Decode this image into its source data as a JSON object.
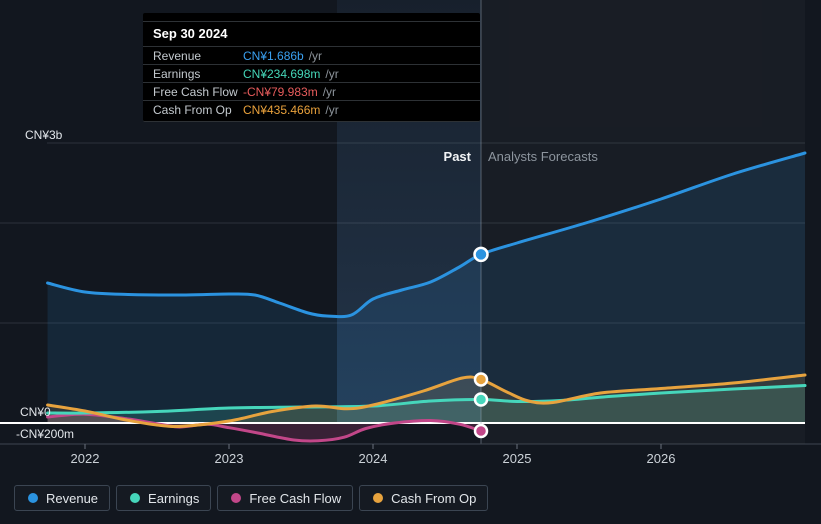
{
  "tooltip": {
    "title": "Sep 30 2024",
    "rows": [
      {
        "label": "Revenue",
        "value": "CN¥1.686b",
        "suffix": "/yr",
        "color": "#3aa0f0"
      },
      {
        "label": "Earnings",
        "value": "CN¥234.698m",
        "suffix": "/yr",
        "color": "#45d6b8"
      },
      {
        "label": "Free Cash Flow",
        "value": "-CN¥79.983m",
        "suffix": "/yr",
        "color": "#e85c5c"
      },
      {
        "label": "Cash From Op",
        "value": "CN¥435.466m",
        "suffix": "/yr",
        "color": "#e9a13b"
      }
    ]
  },
  "annotations": {
    "past_label": "Past",
    "forecast_label": "Analysts Forecasts"
  },
  "y_axis": {
    "top_label": "CN¥3b",
    "zero_label": "CN¥0",
    "neg_label": "-CN¥200m"
  },
  "x_axis": {
    "years": [
      "2022",
      "2023",
      "2024",
      "2025",
      "2026"
    ]
  },
  "legend": [
    {
      "label": "Revenue",
      "color": "#2b93e0"
    },
    {
      "label": "Earnings",
      "color": "#46d6bb"
    },
    {
      "label": "Free Cash Flow",
      "color": "#c24789"
    },
    {
      "label": "Cash From Op",
      "color": "#e7a33e"
    }
  ],
  "chart_data": {
    "type": "line",
    "unit": "CN¥ billions",
    "x_unit": "calendar year (fractional)",
    "x_range": [
      2021.74,
      2027.0
    ],
    "ylim": [
      -0.2,
      3.0
    ],
    "gridlines_billions": [
      3,
      2,
      1,
      0,
      -0.2
    ],
    "divider_date": "Sep 30 2024",
    "divider_x": 2024.75,
    "legend_position": "bottom",
    "series": [
      {
        "name": "Revenue",
        "color": "#2b93e0",
        "fill": "rgba(43,147,224,0.13)",
        "marker_value": 1.686,
        "past": [
          [
            2021.74,
            1.4
          ],
          [
            2022.0,
            1.31
          ],
          [
            2022.3,
            1.285
          ],
          [
            2022.7,
            1.28
          ],
          [
            2023.0,
            1.29
          ],
          [
            2023.18,
            1.28
          ],
          [
            2023.35,
            1.2
          ],
          [
            2023.55,
            1.1
          ],
          [
            2023.68,
            1.07
          ],
          [
            2023.85,
            1.08
          ],
          [
            2024.0,
            1.24
          ],
          [
            2024.2,
            1.33
          ],
          [
            2024.4,
            1.41
          ],
          [
            2024.6,
            1.56
          ],
          [
            2024.75,
            1.686
          ]
        ],
        "forecast": [
          [
            2024.75,
            1.686
          ],
          [
            2025.0,
            1.8
          ],
          [
            2025.5,
            2.01
          ],
          [
            2026.0,
            2.24
          ],
          [
            2026.5,
            2.49
          ],
          [
            2027.0,
            2.7
          ]
        ]
      },
      {
        "name": "Earnings",
        "color": "#46d6bb",
        "fill": "rgba(70,214,187,0.17)",
        "marker_value": 0.2347,
        "past": [
          [
            2021.74,
            0.1
          ],
          [
            2022.0,
            0.1
          ],
          [
            2022.5,
            0.115
          ],
          [
            2023.0,
            0.15
          ],
          [
            2023.5,
            0.16
          ],
          [
            2024.0,
            0.17
          ],
          [
            2024.4,
            0.22
          ],
          [
            2024.75,
            0.2347
          ]
        ],
        "forecast": [
          [
            2024.75,
            0.2347
          ],
          [
            2025.0,
            0.215
          ],
          [
            2025.3,
            0.225
          ],
          [
            2025.6,
            0.26
          ],
          [
            2026.0,
            0.3
          ],
          [
            2026.5,
            0.34
          ],
          [
            2027.0,
            0.375
          ]
        ]
      },
      {
        "name": "Free Cash Flow",
        "color": "#c24789",
        "fill": "rgba(194,71,137,0.22)",
        "marker_value": -0.08,
        "past": [
          [
            2021.74,
            0.06
          ],
          [
            2022.0,
            0.088
          ],
          [
            2022.3,
            0.04
          ],
          [
            2022.55,
            -0.02
          ],
          [
            2022.66,
            -0.04
          ],
          [
            2022.85,
            -0.013
          ],
          [
            2023.0,
            -0.047
          ],
          [
            2023.2,
            -0.1
          ],
          [
            2023.45,
            -0.17
          ],
          [
            2023.62,
            -0.178
          ],
          [
            2023.8,
            -0.142
          ],
          [
            2023.95,
            -0.055
          ],
          [
            2024.15,
            0.0
          ],
          [
            2024.4,
            0.025
          ],
          [
            2024.6,
            -0.012
          ],
          [
            2024.75,
            -0.08
          ]
        ],
        "forecast": []
      },
      {
        "name": "Cash From Op",
        "color": "#e7a33e",
        "fill": "rgba(231,163,62,0.13)",
        "marker_value": 0.4355,
        "past": [
          [
            2021.74,
            0.18
          ],
          [
            2022.0,
            0.12
          ],
          [
            2022.25,
            0.04
          ],
          [
            2022.5,
            -0.02
          ],
          [
            2022.68,
            -0.032
          ],
          [
            2023.0,
            0.02
          ],
          [
            2023.3,
            0.115
          ],
          [
            2023.6,
            0.17
          ],
          [
            2023.82,
            0.142
          ],
          [
            2024.0,
            0.18
          ],
          [
            2024.35,
            0.32
          ],
          [
            2024.62,
            0.45
          ],
          [
            2024.75,
            0.4355
          ]
        ],
        "forecast": [
          [
            2024.75,
            0.4355
          ],
          [
            2024.93,
            0.31
          ],
          [
            2025.08,
            0.22
          ],
          [
            2025.25,
            0.205
          ],
          [
            2025.58,
            0.3
          ],
          [
            2026.0,
            0.345
          ],
          [
            2026.5,
            0.4
          ],
          [
            2027.0,
            0.48
          ]
        ]
      }
    ]
  }
}
